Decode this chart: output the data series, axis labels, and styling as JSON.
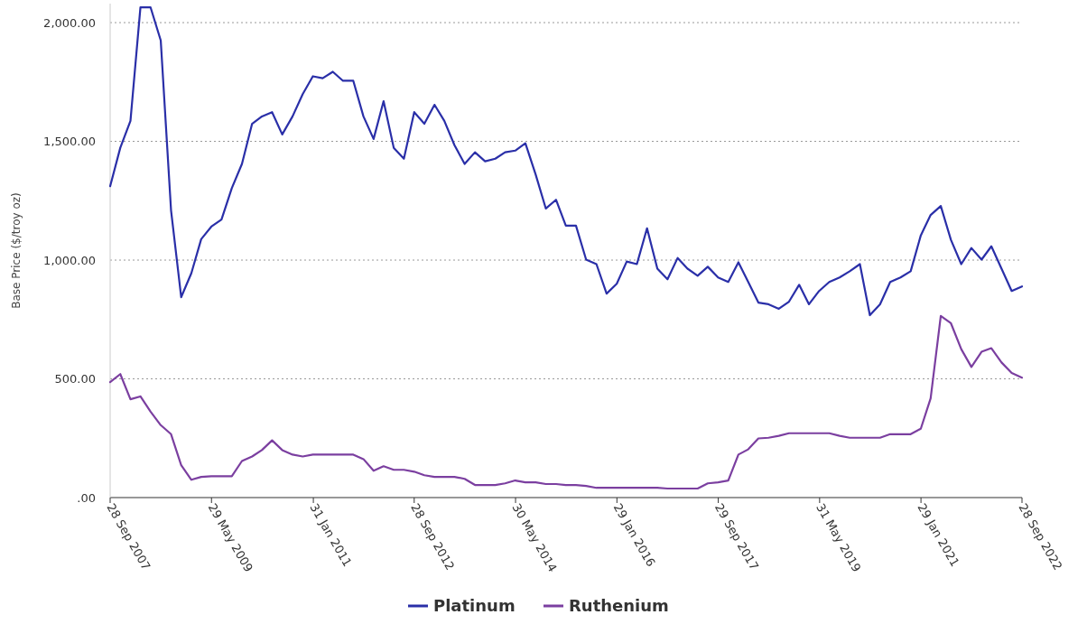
{
  "chart_data": {
    "type": "line",
    "ylabel": "Base Price ($/troy oz)",
    "x": [
      "2007-09-28",
      "2007-11-28",
      "2008-01-28",
      "2008-03-28",
      "2008-05-28",
      "2008-07-28",
      "2008-09-28",
      "2008-11-28",
      "2009-01-28",
      "2009-03-28",
      "2009-05-28",
      "2009-07-28",
      "2009-09-28",
      "2009-11-28",
      "2010-01-28",
      "2010-03-28",
      "2010-05-28",
      "2010-07-28",
      "2010-09-28",
      "2010-11-28",
      "2011-01-28",
      "2011-03-28",
      "2011-05-28",
      "2011-07-28",
      "2011-09-28",
      "2011-11-28",
      "2012-01-28",
      "2012-03-28",
      "2012-05-28",
      "2012-07-28",
      "2012-09-28",
      "2012-11-28",
      "2013-01-28",
      "2013-03-28",
      "2013-05-28",
      "2013-07-28",
      "2013-09-28",
      "2013-11-28",
      "2014-01-28",
      "2014-03-28",
      "2014-05-28",
      "2014-07-28",
      "2014-09-28",
      "2014-11-28",
      "2015-01-28",
      "2015-03-28",
      "2015-05-28",
      "2015-07-28",
      "2015-09-28",
      "2015-11-28",
      "2016-01-28",
      "2016-03-28",
      "2016-05-28",
      "2016-07-28",
      "2016-09-28",
      "2016-11-28",
      "2017-01-28",
      "2017-03-28",
      "2017-05-28",
      "2017-07-28",
      "2017-09-28",
      "2017-11-28",
      "2018-01-28",
      "2018-03-28",
      "2018-05-28",
      "2018-07-28",
      "2018-09-28",
      "2018-11-28",
      "2019-01-28",
      "2019-03-28",
      "2019-05-28",
      "2019-07-28",
      "2019-09-28",
      "2019-11-28",
      "2020-01-28",
      "2020-03-28",
      "2020-05-28",
      "2020-07-28",
      "2020-09-28",
      "2020-11-28",
      "2021-01-28",
      "2021-03-28",
      "2021-05-28",
      "2021-07-28",
      "2021-09-28",
      "2021-11-28",
      "2022-01-28",
      "2022-03-28",
      "2022-05-28",
      "2022-07-28",
      "2022-09-28"
    ],
    "series": [
      {
        "name": "Platinum",
        "color": "#2a2fa8",
        "values": [
          1311,
          1473,
          1586,
          2064,
          2064,
          1925,
          1209,
          844,
          945,
          1088,
          1141,
          1171,
          1303,
          1405,
          1574,
          1605,
          1623,
          1529,
          1605,
          1699,
          1774,
          1766,
          1793,
          1755,
          1755,
          1605,
          1510,
          1669,
          1473,
          1427,
          1623,
          1574,
          1654,
          1586,
          1484,
          1405,
          1454,
          1416,
          1427,
          1454,
          1461,
          1492,
          1360,
          1217,
          1254,
          1145,
          1145,
          1002,
          983,
          859,
          900,
          994,
          983,
          1134,
          964,
          919,
          1009,
          964,
          934,
          972,
          927,
          908,
          991,
          908,
          821,
          814,
          795,
          825,
          896,
          814,
          870,
          908,
          927,
          953,
          983,
          768,
          814,
          908,
          927,
          953,
          1104,
          1190,
          1228,
          1085,
          983,
          1051,
          1002,
          1058,
          964,
          870,
          889
        ]
      },
      {
        "name": "Ruthenium",
        "color": "#7b3fa0",
        "values": [
          486,
          520,
          414,
          426,
          362,
          305,
          267,
          136,
          75,
          87,
          90,
          90,
          90,
          154,
          173,
          200,
          241,
          200,
          181,
          173,
          181,
          181,
          181,
          181,
          181,
          162,
          113,
          132,
          117,
          117,
          109,
          94,
          87,
          87,
          87,
          79,
          53,
          53,
          53,
          60,
          72,
          64,
          64,
          57,
          57,
          53,
          53,
          49,
          41,
          41,
          41,
          41,
          41,
          41,
          41,
          38,
          38,
          38,
          38,
          60,
          64,
          72,
          181,
          203,
          249,
          252,
          260,
          271,
          271,
          271,
          271,
          271,
          260,
          252,
          252,
          252,
          252,
          267,
          267,
          267,
          290,
          418,
          765,
          734,
          625,
          550,
          614,
          629,
          569,
          525,
          505
        ]
      }
    ],
    "xlim": [
      "2007-09-28",
      "2022-09-28"
    ],
    "xticks": [
      {
        "value": "2007-09-28",
        "label": "28 Sep 2007"
      },
      {
        "value": "2009-05-29",
        "label": "29 May 2009"
      },
      {
        "value": "2011-01-31",
        "label": "31 Jan 2011"
      },
      {
        "value": "2012-09-28",
        "label": "28 Sep 2012"
      },
      {
        "value": "2014-05-30",
        "label": "30 May 2014"
      },
      {
        "value": "2016-01-29",
        "label": "29 Jan 2016"
      },
      {
        "value": "2017-09-29",
        "label": "29 Sep 2017"
      },
      {
        "value": "2019-05-31",
        "label": "31 May 2019"
      },
      {
        "value": "2021-01-29",
        "label": "29 Jan 2021"
      },
      {
        "value": "2022-09-28",
        "label": "28 Sep 2022"
      }
    ],
    "ylim": [
      0,
      2080
    ],
    "yticks": [
      {
        "value": 0,
        "label": ".00"
      },
      {
        "value": 500,
        "label": "500.00"
      },
      {
        "value": 1000,
        "label": "1,000.00"
      },
      {
        "value": 1500,
        "label": "1,500.00"
      },
      {
        "value": 2000,
        "label": "2,000.00"
      }
    ],
    "grid": "y",
    "legend": "bottom",
    "marker": "none",
    "line_style": "solid"
  }
}
